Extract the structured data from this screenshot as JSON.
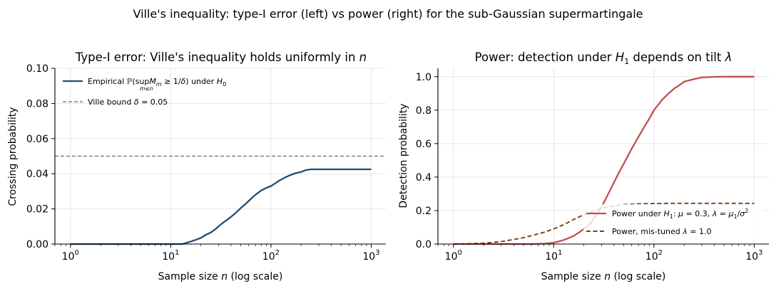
{
  "figure": {
    "suptitle": "Ville's inequality: type-I error (left) vs power (right) for the sub-Gaussian supermartingale"
  },
  "chart_data": [
    {
      "type": "line",
      "title": "Type-I error: Ville's inequality holds uniformly in n",
      "xlabel": "Sample size n (log scale)",
      "ylabel": "Crossing probability",
      "xscale": "log",
      "xlim": [
        0.7,
        1400
      ],
      "ylim": [
        0,
        0.1
      ],
      "x_ticks": [
        {
          "value": 1,
          "exp": "0"
        },
        {
          "value": 10,
          "exp": "1"
        },
        {
          "value": 100,
          "exp": "2"
        },
        {
          "value": 1000,
          "exp": "3"
        }
      ],
      "y_ticks": [
        {
          "value": 0,
          "label": "0.00"
        },
        {
          "value": 0.02,
          "label": "0.02"
        },
        {
          "value": 0.04,
          "label": "0.04"
        },
        {
          "value": 0.06,
          "label": "0.06"
        },
        {
          "value": 0.08,
          "label": "0.08"
        },
        {
          "value": 0.1,
          "label": "0.10"
        }
      ],
      "grid": true,
      "legend_position": "upper-left",
      "series": [
        {
          "name": "Empirical ℙ(sup M_m ≥ 1/δ) under H_0",
          "legend": {
            "pre": "Empirical ℙ(sup",
            "sub": "m≤n",
            "mid": "M",
            "mid_sub": "m",
            "post": " ≥ 1/δ) under ",
            "h": "H",
            "h_sub": "0"
          },
          "color": "#1f4e79",
          "style": "solid",
          "x": [
            1,
            2,
            5,
            10,
            13,
            14,
            15,
            16,
            18,
            20,
            22,
            25,
            28,
            30,
            33,
            36,
            40,
            45,
            50,
            55,
            60,
            70,
            80,
            90,
            100,
            110,
            120,
            140,
            160,
            180,
            200,
            220,
            250,
            300,
            400,
            500,
            700,
            1000
          ],
          "y": [
            0,
            0,
            0,
            0,
            0,
            0.0005,
            0.001,
            0.0015,
            0.0025,
            0.0035,
            0.005,
            0.0065,
            0.0085,
            0.01,
            0.012,
            0.0135,
            0.0155,
            0.018,
            0.0205,
            0.0225,
            0.0245,
            0.028,
            0.0305,
            0.032,
            0.033,
            0.0345,
            0.036,
            0.038,
            0.0395,
            0.0405,
            0.041,
            0.042,
            0.0425,
            0.0425,
            0.0425,
            0.0425,
            0.0425,
            0.0425
          ]
        },
        {
          "name": "Ville bound δ = 0.05",
          "legend": {
            "pre": "Ville bound ",
            "delta": "δ = 0.05"
          },
          "color": "#808080",
          "style": "dashed",
          "x": [
            0.7,
            1400
          ],
          "y": [
            0.05,
            0.05
          ]
        }
      ]
    },
    {
      "type": "line",
      "title": "Power: detection under H1 depends on tilt λ",
      "title_parts": {
        "pre": "Power: detection under ",
        "h": "H",
        "h_sub": "1",
        "post": " depends on tilt ",
        "lam": "λ"
      },
      "xlabel": "Sample size n (log scale)",
      "ylabel": "Detection probability",
      "xscale": "log",
      "xlim": [
        0.7,
        1400
      ],
      "ylim": [
        0,
        1.05
      ],
      "x_ticks": [
        {
          "value": 1,
          "exp": "0"
        },
        {
          "value": 10,
          "exp": "1"
        },
        {
          "value": 100,
          "exp": "2"
        },
        {
          "value": 1000,
          "exp": "3"
        }
      ],
      "y_ticks": [
        {
          "value": 0,
          "label": "0.0"
        },
        {
          "value": 0.2,
          "label": "0.2"
        },
        {
          "value": 0.4,
          "label": "0.4"
        },
        {
          "value": 0.6,
          "label": "0.6"
        },
        {
          "value": 0.8,
          "label": "0.8"
        },
        {
          "value": 1.0,
          "label": "1.0"
        }
      ],
      "grid": true,
      "legend_position": "lower-right",
      "series": [
        {
          "name": "Power under H1: μ = 0.3, λ = μ1/σ²",
          "legend": {
            "pre": "Power under ",
            "h": "H",
            "h_sub": "1",
            "post": ": μ = 0.3, λ = μ",
            "mu_sub": "1",
            "tail": "/σ",
            "sup": "2"
          },
          "color": "#c0504d",
          "style": "solid",
          "x": [
            1,
            2,
            4,
            6,
            8,
            10,
            12,
            14,
            16,
            18,
            20,
            23,
            25,
            28,
            30,
            35,
            40,
            45,
            50,
            60,
            70,
            80,
            90,
            100,
            120,
            140,
            160,
            180,
            200,
            250,
            300,
            400,
            500,
            700,
            1000
          ],
          "y": [
            0,
            0,
            0,
            0,
            0.002,
            0.008,
            0.02,
            0.035,
            0.05,
            0.07,
            0.09,
            0.12,
            0.15,
            0.19,
            0.22,
            0.3,
            0.37,
            0.43,
            0.48,
            0.57,
            0.64,
            0.7,
            0.75,
            0.8,
            0.86,
            0.9,
            0.93,
            0.95,
            0.97,
            0.985,
            0.995,
            0.999,
            1.0,
            1.0,
            1.0
          ]
        },
        {
          "name": "Power, mis-tuned λ = 1.0",
          "legend": {
            "pre": "Power, mis-tuned ",
            "lam": "λ = 1.0"
          },
          "color": "#7b3f12",
          "style": "dashed",
          "x": [
            1,
            1.5,
            2,
            3,
            4,
            5,
            6,
            8,
            10,
            13,
            16,
            20,
            25,
            30,
            40,
            50,
            70,
            100,
            150,
            200,
            300,
            500,
            1000
          ],
          "y": [
            0,
            0.002,
            0.005,
            0.015,
            0.027,
            0.038,
            0.05,
            0.07,
            0.09,
            0.12,
            0.148,
            0.175,
            0.198,
            0.213,
            0.228,
            0.236,
            0.24,
            0.242,
            0.243,
            0.243,
            0.243,
            0.243,
            0.243
          ]
        }
      ]
    }
  ]
}
